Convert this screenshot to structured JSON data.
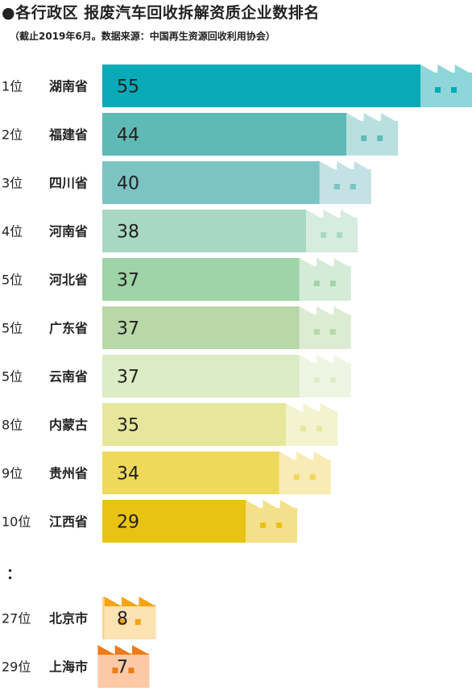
{
  "title": "●各行政区 报废汽车回收拆解资质企业数排名",
  "subtitle": "（截止2019年6月。数据来源：中国再生资源回收利用协会）",
  "ellipsis": "：",
  "chart_data": {
    "type": "bar",
    "orientation": "horizontal",
    "title": "●各行政区 报废汽车回收拆解资质企业数排名",
    "subtitle": "（截止2019年6月。数据来源：中国再生资源回收利用协会）",
    "categories": [
      "湖南省",
      "福建省",
      "四川省",
      "河南省",
      "河北省",
      "广东省",
      "云南省",
      "内蒙古",
      "贵州省",
      "江西省",
      "北京市",
      "上海市"
    ],
    "ranks": [
      "1位",
      "2位",
      "3位",
      "4位",
      "5位",
      "5位",
      "5位",
      "8位",
      "9位",
      "10位",
      "27位",
      "29位"
    ],
    "values": [
      55,
      44,
      40,
      38,
      37,
      37,
      37,
      35,
      34,
      29,
      8,
      7
    ],
    "bar_colors": [
      "#08aab7",
      "#5fbab6",
      "#7cc3c4",
      "#a8d8c4",
      "#9fd3a8",
      "#b8d8a8",
      "#dcecc4",
      "#e6e79c",
      "#efd95a",
      "#e9c313",
      "#f9d38a",
      "#f8b07c"
    ],
    "factory_colors": [
      "#8fd6da",
      "#b8e0df",
      "#c4e2e3",
      "#d6ecde",
      "#d4ecd7",
      "#dcecd3",
      "#eef5e3",
      "#f3f3cf",
      "#f8ecb4",
      "#f4e08b",
      "#fde2b3",
      "#fbc9a6"
    ],
    "roof_colors": [
      "#8fd6da",
      "#b8e0df",
      "#c4e2e3",
      "#d6ecde",
      "#d4ecd7",
      "#dcecd3",
      "#eef5e3",
      "#f3f3cf",
      "#f8ecb4",
      "#f4e08b",
      "#f5a313",
      "#ef7a18"
    ],
    "window_colors": [
      "#08aab7",
      "#5fbab6",
      "#7cc3c4",
      "#a8d8c4",
      "#9fd3a8",
      "#b8d8a8",
      "#dcecc4",
      "#e6e79c",
      "#efd95a",
      "#e9c313",
      "#f5a313",
      "#ef7a18"
    ],
    "xlim": [
      0,
      55
    ]
  }
}
